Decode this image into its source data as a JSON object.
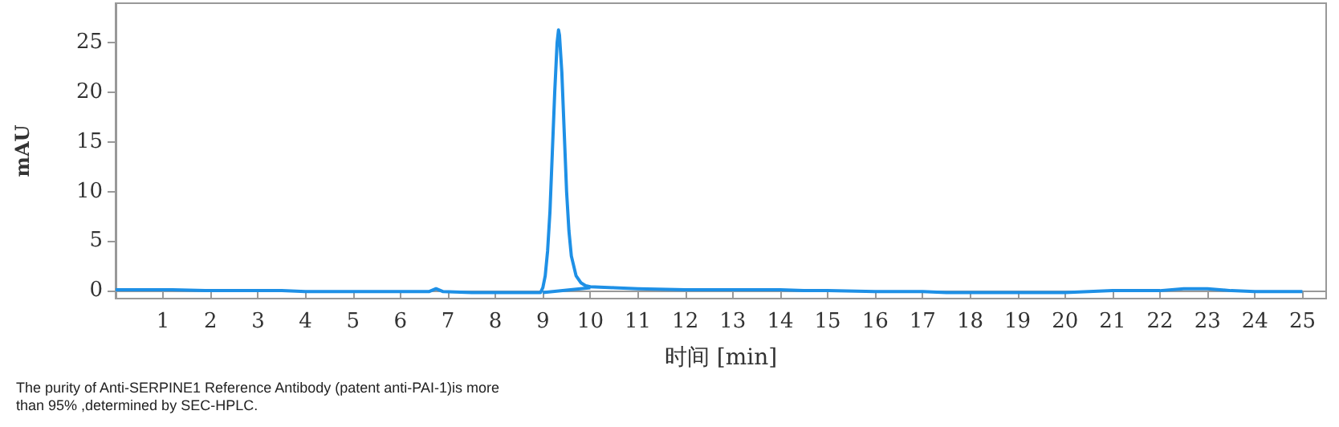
{
  "chart_data": {
    "type": "line",
    "xlabel": "时间 [min]",
    "ylabel": "mAU",
    "annotations": [
      "The purity of Anti-SERPINE1 Reference Antibody (patent anti-PAI-1)is more than 95% ,determined by SEC-HPLC."
    ],
    "xlim": [
      0,
      25.5
    ],
    "xticks": [
      1,
      2,
      3,
      4,
      5,
      6,
      7,
      8,
      9,
      10,
      11,
      12,
      13,
      14,
      15,
      16,
      17,
      18,
      19,
      20,
      21,
      22,
      23,
      24,
      25
    ],
    "ylim": [
      -0.8,
      29
    ],
    "yticks": [
      0,
      5,
      10,
      15,
      20,
      25
    ],
    "marker": "none",
    "line_style": "solid",
    "series": [
      {
        "color": "#1e90e6",
        "x": [
          0,
          0.5,
          1.2,
          2,
          3,
          3.5,
          4,
          5,
          6,
          6.6,
          6.75,
          6.9,
          7.5,
          8.5,
          8.95,
          9.0,
          9.05,
          9.1,
          9.15,
          9.2,
          9.25,
          9.3,
          9.33,
          9.35,
          9.4,
          9.45,
          9.5,
          9.55,
          9.6,
          9.7,
          9.8,
          9.9,
          10.0,
          10.5,
          11,
          12,
          13,
          14,
          14.5,
          15,
          16,
          17,
          17.5,
          18,
          19,
          20,
          21,
          22,
          22.5,
          23,
          23.5,
          24,
          25
        ],
        "values": [
          0.1,
          0.1,
          0.1,
          0,
          0,
          0,
          -0.1,
          -0.1,
          -0.1,
          -0.1,
          0.2,
          -0.1,
          -0.2,
          -0.2,
          -0.2,
          0.3,
          1.5,
          4,
          8,
          14,
          20,
          25,
          26.3,
          25.8,
          22,
          16,
          10,
          6,
          3.5,
          1.5,
          0.8,
          0.5,
          0.4,
          0.3,
          0.2,
          0.1,
          0.1,
          0.1,
          0,
          0,
          -0.1,
          -0.1,
          -0.2,
          -0.2,
          -0.2,
          -0.2,
          0,
          0,
          0.2,
          0.2,
          0,
          -0.1,
          -0.1
        ]
      },
      {
        "color": "#1e90e6",
        "x": [
          9.0,
          10.0
        ],
        "values": [
          -0.2,
          0.3
        ]
      }
    ]
  }
}
